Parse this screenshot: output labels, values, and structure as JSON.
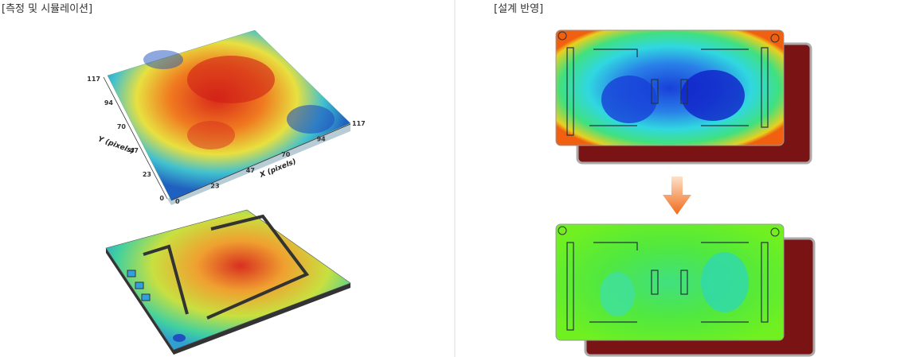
{
  "left": {
    "title": "[측정 및 시뮬레이션]",
    "surface_plot": {
      "y_axis_label": "Y (pixels)",
      "y_ticks": [
        "117",
        "94",
        "70",
        "47",
        "23",
        "0"
      ],
      "x_axis_label": "X (pixels)",
      "x_ticks": [
        "0",
        "23",
        "47",
        "70",
        "94",
        "117"
      ]
    }
  },
  "right": {
    "title": "[설계 반영]"
  }
}
